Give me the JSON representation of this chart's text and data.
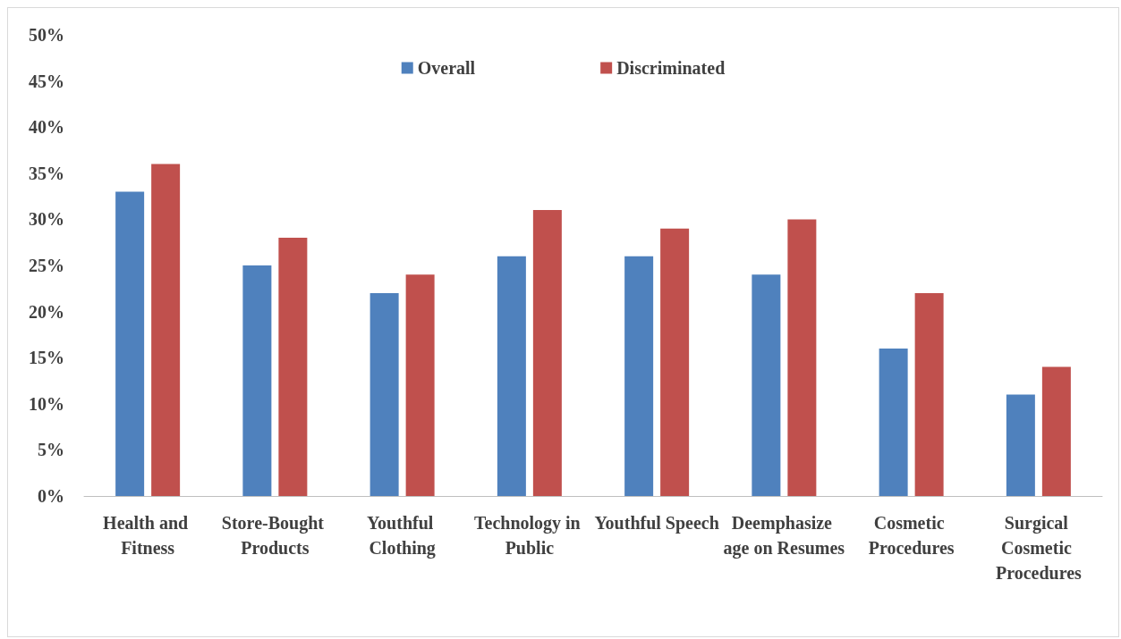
{
  "chart_data": {
    "type": "bar",
    "categories": [
      "Health and Fitness",
      "Store-Bought Products",
      "Youthful Clothing",
      "Technology in Public",
      "Youthful Speech",
      "Deemphasize age on Resumes",
      "Cosmetic Procedures",
      "Surgical Cosmetic Procedures"
    ],
    "series": [
      {
        "name": "Overall",
        "color": "#4f81bd",
        "values": [
          33,
          25,
          22,
          26,
          26,
          24,
          16,
          11
        ]
      },
      {
        "name": "Discriminated",
        "color": "#c0504d",
        "values": [
          36,
          28,
          24,
          31,
          29,
          30,
          22,
          14
        ]
      }
    ],
    "ylim": [
      0,
      50
    ],
    "yticks": [
      {
        "value": 0,
        "label": "0%"
      },
      {
        "value": 5,
        "label": "5%"
      },
      {
        "value": 10,
        "label": "10%"
      },
      {
        "value": 15,
        "label": "15%"
      },
      {
        "value": 20,
        "label": "20%"
      },
      {
        "value": 25,
        "label": "25%"
      },
      {
        "value": 30,
        "label": "30%"
      },
      {
        "value": 35,
        "label": "35%"
      },
      {
        "value": 40,
        "label": "40%"
      },
      {
        "value": 45,
        "label": "45%"
      },
      {
        "value": 50,
        "label": "50%"
      }
    ],
    "grid": false,
    "legend": "top"
  }
}
